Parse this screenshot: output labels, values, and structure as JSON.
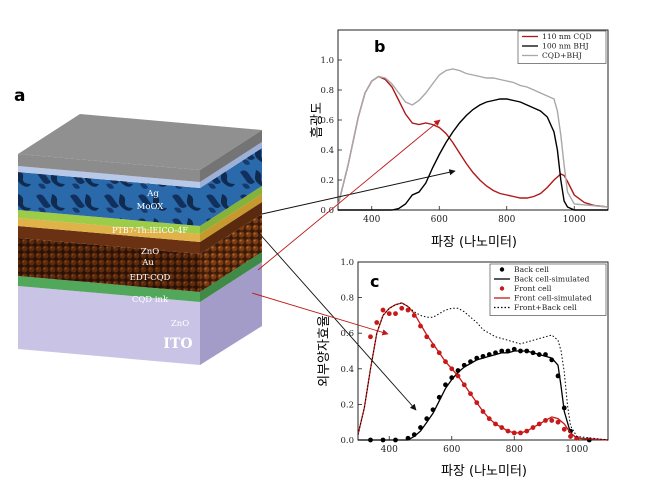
{
  "panel_a": {
    "letter": "a",
    "layers": [
      "Ag",
      "MoOX",
      "PTB7-Th:IEICO-4F",
      "ZnO",
      "Au",
      "EDT-CQD",
      "CQD ink",
      "ZnO",
      "ITO"
    ]
  },
  "chart_data": [
    {
      "panel": "b",
      "type": "line",
      "xlabel": "파장 (나노미터)",
      "ylabel": "흡광도",
      "xlim": [
        300,
        1100
      ],
      "ylim": [
        0,
        1.2
      ],
      "xticks": [
        400,
        600,
        800,
        1000
      ],
      "yticks": [
        0.0,
        0.2,
        0.4,
        0.6,
        0.8,
        1.0
      ],
      "legend_position": "top-right",
      "series": [
        {
          "name": "110 nm CQD",
          "color": "#b01818",
          "x": [
            300,
            330,
            360,
            380,
            400,
            420,
            440,
            460,
            480,
            500,
            520,
            540,
            560,
            580,
            600,
            620,
            640,
            660,
            680,
            700,
            720,
            740,
            760,
            780,
            800,
            820,
            840,
            860,
            880,
            900,
            920,
            940,
            960,
            970,
            980,
            1000,
            1030,
            1060,
            1100
          ],
          "y": [
            0.03,
            0.3,
            0.62,
            0.78,
            0.86,
            0.89,
            0.87,
            0.82,
            0.73,
            0.64,
            0.58,
            0.57,
            0.58,
            0.57,
            0.55,
            0.51,
            0.45,
            0.38,
            0.31,
            0.25,
            0.2,
            0.16,
            0.13,
            0.11,
            0.1,
            0.09,
            0.08,
            0.08,
            0.09,
            0.11,
            0.15,
            0.2,
            0.24,
            0.23,
            0.19,
            0.1,
            0.05,
            0.03,
            0.02
          ]
        },
        {
          "name": "100 nm BHJ",
          "color": "#000000",
          "x": [
            300,
            400,
            460,
            480,
            500,
            520,
            540,
            560,
            580,
            600,
            620,
            640,
            660,
            680,
            700,
            720,
            740,
            760,
            780,
            800,
            820,
            840,
            860,
            880,
            900,
            920,
            940,
            950,
            960,
            970,
            980,
            1000,
            1100
          ],
          "y": [
            0.0,
            0.0,
            0.0,
            0.01,
            0.04,
            0.1,
            0.12,
            0.18,
            0.28,
            0.37,
            0.45,
            0.52,
            0.58,
            0.63,
            0.67,
            0.7,
            0.72,
            0.73,
            0.74,
            0.74,
            0.73,
            0.72,
            0.7,
            0.68,
            0.66,
            0.62,
            0.52,
            0.4,
            0.2,
            0.06,
            0.02,
            0.0,
            0.0
          ]
        },
        {
          "name": "CQD+BHJ",
          "color": "#a8a8a8",
          "x": [
            300,
            330,
            360,
            380,
            400,
            420,
            440,
            460,
            480,
            500,
            520,
            540,
            560,
            580,
            600,
            620,
            640,
            660,
            680,
            700,
            720,
            740,
            760,
            780,
            800,
            820,
            840,
            860,
            880,
            900,
            920,
            940,
            950,
            960,
            970,
            980,
            1000,
            1100
          ],
          "y": [
            0.03,
            0.3,
            0.62,
            0.78,
            0.86,
            0.89,
            0.88,
            0.84,
            0.78,
            0.72,
            0.7,
            0.73,
            0.78,
            0.84,
            0.9,
            0.93,
            0.94,
            0.93,
            0.91,
            0.9,
            0.89,
            0.88,
            0.88,
            0.87,
            0.86,
            0.85,
            0.83,
            0.82,
            0.8,
            0.78,
            0.76,
            0.74,
            0.66,
            0.5,
            0.3,
            0.12,
            0.04,
            0.02
          ]
        }
      ]
    },
    {
      "panel": "c",
      "type": "line",
      "xlabel": "파장 (나노미터)",
      "ylabel": "외부양자효율",
      "xlim": [
        300,
        1100
      ],
      "ylim": [
        0,
        1.0
      ],
      "xticks": [
        400,
        600,
        800,
        1000
      ],
      "yticks": [
        0.0,
        0.2,
        0.4,
        0.6,
        0.8,
        1.0
      ],
      "legend_position": "top-right",
      "series": [
        {
          "name": "Back cell",
          "style": "markers",
          "color": "#000000",
          "x": [
            340,
            380,
            420,
            460,
            480,
            500,
            520,
            540,
            560,
            580,
            600,
            620,
            640,
            660,
            680,
            700,
            720,
            740,
            760,
            780,
            800,
            820,
            840,
            860,
            880,
            900,
            920,
            940,
            960,
            980,
            1000,
            1040
          ],
          "y": [
            0.0,
            0.0,
            0.0,
            0.01,
            0.03,
            0.07,
            0.12,
            0.17,
            0.24,
            0.31,
            0.35,
            0.39,
            0.42,
            0.44,
            0.46,
            0.47,
            0.48,
            0.49,
            0.5,
            0.5,
            0.51,
            0.5,
            0.5,
            0.49,
            0.48,
            0.48,
            0.45,
            0.36,
            0.18,
            0.05,
            0.01,
            0.0
          ]
        },
        {
          "name": "Back cell-simulated",
          "style": "line",
          "color": "#000000",
          "x": [
            300,
            460,
            480,
            500,
            520,
            540,
            560,
            580,
            600,
            620,
            640,
            660,
            680,
            700,
            720,
            740,
            760,
            780,
            800,
            820,
            840,
            860,
            880,
            900,
            920,
            940,
            950,
            960,
            980,
            1000,
            1100
          ],
          "y": [
            0.0,
            0.0,
            0.02,
            0.05,
            0.1,
            0.15,
            0.22,
            0.29,
            0.34,
            0.38,
            0.41,
            0.43,
            0.45,
            0.46,
            0.47,
            0.48,
            0.49,
            0.49,
            0.5,
            0.5,
            0.5,
            0.49,
            0.48,
            0.47,
            0.46,
            0.42,
            0.3,
            0.16,
            0.04,
            0.01,
            0.0
          ]
        },
        {
          "name": "Front cell",
          "style": "markers",
          "color": "#c81818",
          "x": [
            340,
            360,
            380,
            400,
            420,
            440,
            460,
            480,
            500,
            520,
            540,
            560,
            580,
            600,
            620,
            640,
            660,
            680,
            700,
            720,
            740,
            760,
            780,
            800,
            820,
            840,
            860,
            880,
            900,
            920,
            940,
            960,
            980,
            1000
          ],
          "y": [
            0.58,
            0.66,
            0.73,
            0.71,
            0.71,
            0.74,
            0.73,
            0.7,
            0.64,
            0.58,
            0.53,
            0.49,
            0.44,
            0.4,
            0.36,
            0.31,
            0.26,
            0.21,
            0.16,
            0.12,
            0.09,
            0.07,
            0.05,
            0.04,
            0.04,
            0.05,
            0.07,
            0.09,
            0.11,
            0.11,
            0.1,
            0.06,
            0.02,
            0.01
          ]
        },
        {
          "name": "Front cell-simulated",
          "style": "line",
          "color": "#c81818",
          "x": [
            300,
            320,
            340,
            360,
            380,
            400,
            420,
            440,
            460,
            480,
            500,
            520,
            540,
            560,
            580,
            600,
            620,
            640,
            660,
            680,
            700,
            720,
            740,
            760,
            780,
            800,
            820,
            840,
            860,
            880,
            900,
            920,
            940,
            960,
            980,
            1000,
            1100
          ],
          "y": [
            0.03,
            0.18,
            0.4,
            0.6,
            0.7,
            0.74,
            0.76,
            0.77,
            0.75,
            0.71,
            0.65,
            0.59,
            0.54,
            0.49,
            0.44,
            0.4,
            0.36,
            0.31,
            0.26,
            0.21,
            0.16,
            0.12,
            0.09,
            0.07,
            0.05,
            0.04,
            0.04,
            0.05,
            0.07,
            0.09,
            0.11,
            0.13,
            0.12,
            0.09,
            0.04,
            0.01,
            0.0
          ]
        },
        {
          "name": "Front+Back cell",
          "style": "dotted",
          "color": "#000000",
          "x": [
            300,
            320,
            340,
            360,
            380,
            400,
            420,
            440,
            460,
            480,
            500,
            520,
            540,
            560,
            580,
            600,
            620,
            640,
            660,
            680,
            700,
            720,
            740,
            760,
            780,
            800,
            820,
            840,
            860,
            880,
            900,
            920,
            940,
            950,
            960,
            970,
            980,
            1000,
            1100
          ],
          "y": [
            0.03,
            0.18,
            0.4,
            0.6,
            0.7,
            0.74,
            0.76,
            0.77,
            0.75,
            0.72,
            0.7,
            0.69,
            0.69,
            0.71,
            0.73,
            0.74,
            0.74,
            0.72,
            0.69,
            0.66,
            0.62,
            0.6,
            0.58,
            0.57,
            0.56,
            0.55,
            0.54,
            0.55,
            0.56,
            0.57,
            0.58,
            0.59,
            0.56,
            0.5,
            0.38,
            0.2,
            0.08,
            0.02,
            0.0
          ]
        }
      ]
    }
  ]
}
